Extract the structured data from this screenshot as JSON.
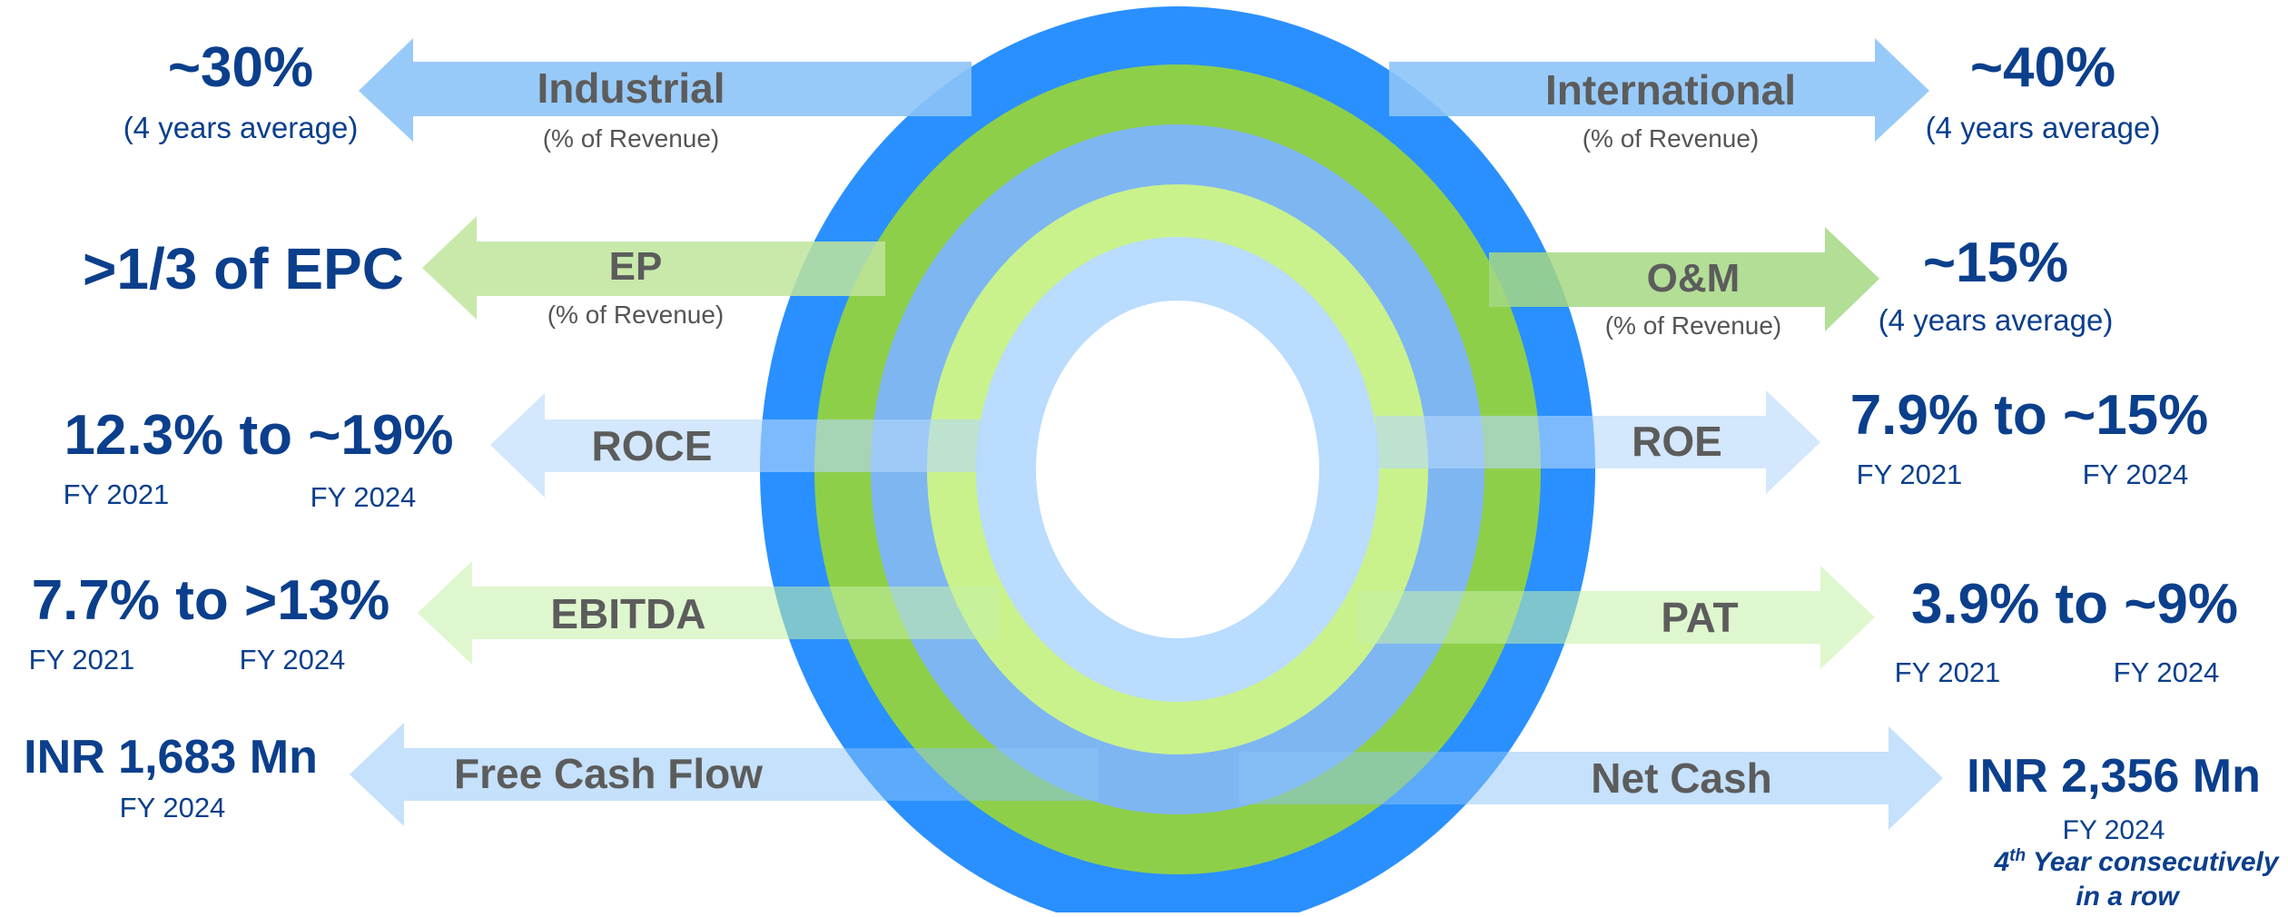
{
  "colors": {
    "ring_outer": "#2a90ff",
    "ring_green_dark": "#8ecf4a",
    "ring_blue_mid": "#7eb6f2",
    "ring_green_light": "#c9f28c",
    "ring_blue_light": "#b9dcff",
    "text_value": "#0b3f8c",
    "text_label": "#5c5c5c"
  },
  "left": {
    "industrial": {
      "label": "Industrial",
      "sub": "(% of Revenue)",
      "value": "~30%",
      "note": "(4 years average)"
    },
    "ep": {
      "label": "EP",
      "sub": "(% of Revenue)",
      "value": ">1/3 of EPC"
    },
    "roce": {
      "label": "ROCE",
      "value": "12.3% to ~19%",
      "from_year": "FY 2021",
      "to_year": "FY 2024"
    },
    "ebitda": {
      "label": "EBITDA",
      "value": "7.7% to >13%",
      "from_year": "FY 2021",
      "to_year": "FY 2024"
    },
    "fcf": {
      "label": "Free Cash Flow",
      "value": "INR 1,683 Mn",
      "year": "FY 2024"
    }
  },
  "right": {
    "international": {
      "label": "International",
      "sub": "(% of Revenue)",
      "value": "~40%",
      "note": "(4 years average)"
    },
    "om": {
      "label": "O&M",
      "sub": "(% of Revenue)",
      "value": "~15%",
      "note": "(4 years average)"
    },
    "roe": {
      "label": "ROE",
      "value": "7.9% to ~15%",
      "from_year": "FY 2021",
      "to_year": "FY 2024"
    },
    "pat": {
      "label": "PAT",
      "value": "3.9% to ~9%",
      "from_year": "FY 2021",
      "to_year": "FY 2024"
    },
    "netcash": {
      "label": "Net Cash",
      "value": "INR 2,356 Mn",
      "year": "FY 2024",
      "note_num": "4",
      "note_sup": "th",
      "note_rest": " Year consecutively",
      "note_line2": "in a row"
    }
  }
}
